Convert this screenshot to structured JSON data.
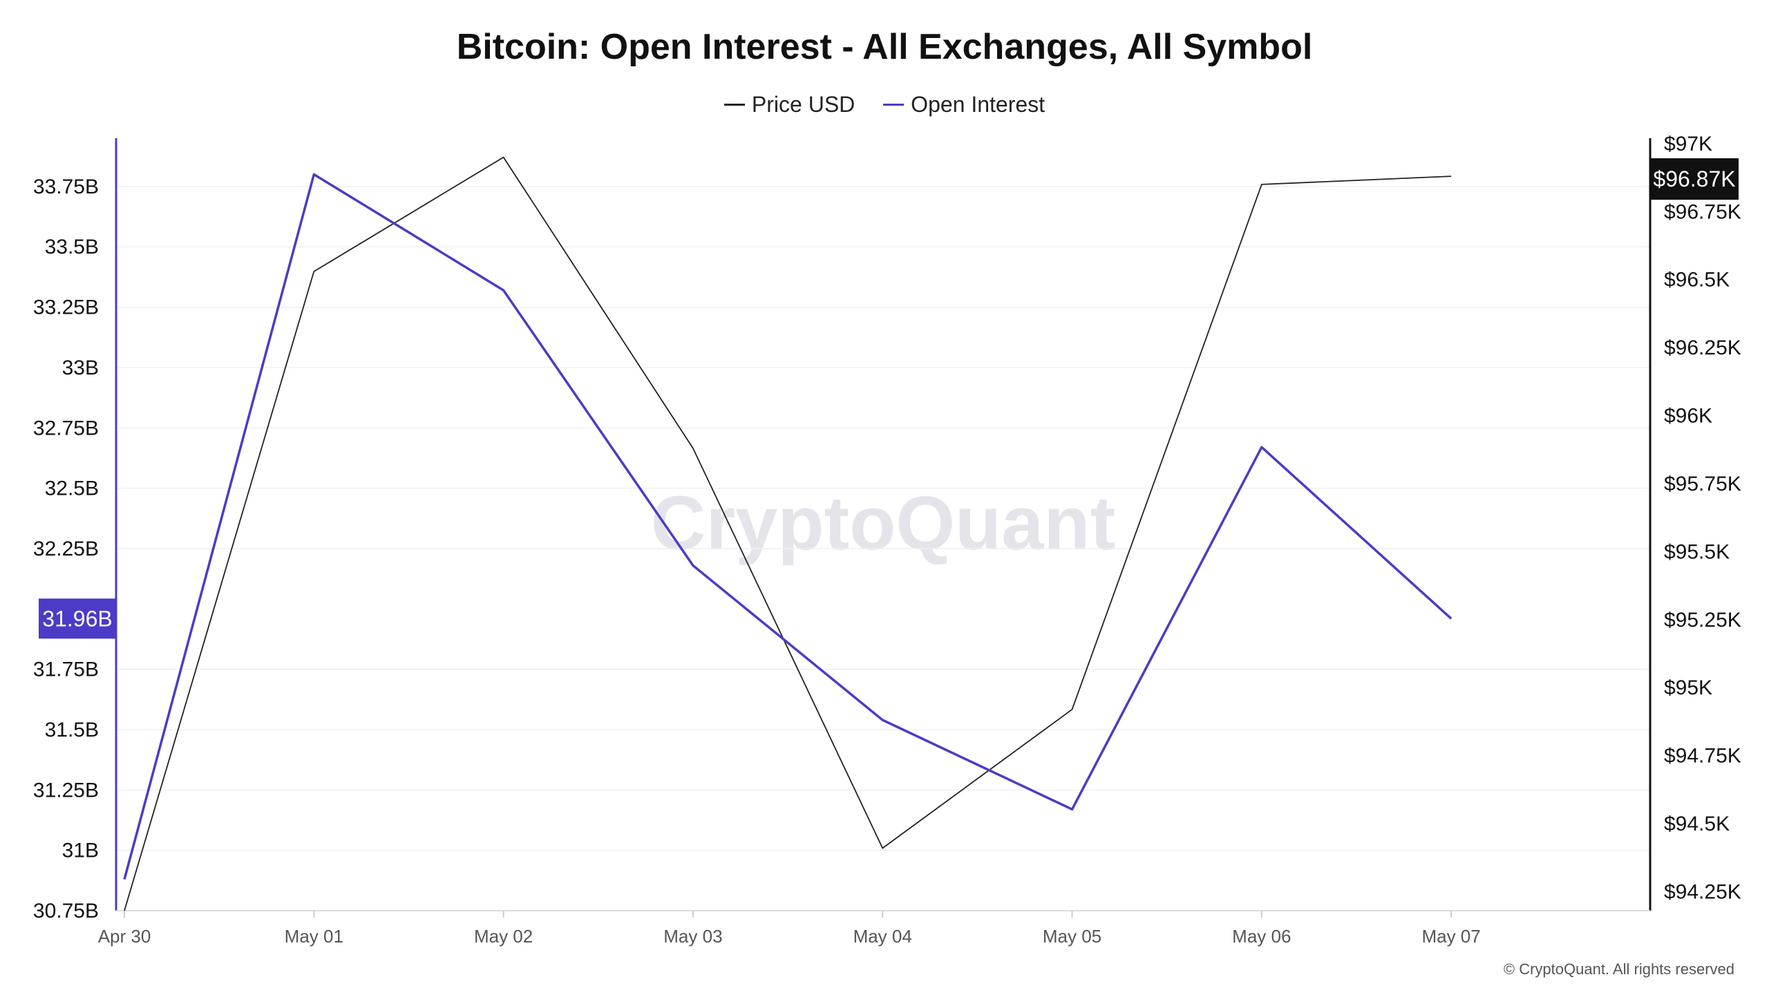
{
  "title": "Bitcoin: Open Interest - All Exchanges, All Symbol",
  "legend": [
    {
      "label": "Price USD",
      "color": "#222222"
    },
    {
      "label": "Open Interest",
      "color": "#4b3bc7"
    }
  ],
  "watermark": "CryptoQuant",
  "copyright": "© CryptoQuant. All rights reserved",
  "chart_data": {
    "type": "line",
    "title": "Bitcoin: Open Interest - All Exchanges, All Symbol",
    "x": [
      "Apr 30",
      "May 01",
      "May 02",
      "May 03",
      "May 04",
      "May 05",
      "May 06",
      "May 07"
    ],
    "series": [
      {
        "name": "Price USD",
        "axis": "right",
        "color": "#222222",
        "values": [
          94.18,
          96.53,
          96.95,
          95.88,
          94.41,
          94.92,
          96.85,
          96.88
        ]
      },
      {
        "name": "Open Interest",
        "axis": "left",
        "color": "#4b3bc7",
        "values": [
          30.88,
          33.8,
          33.32,
          32.18,
          31.54,
          31.17,
          32.67,
          31.96
        ]
      }
    ],
    "left_axis": {
      "ylim": [
        30.75,
        33.95
      ],
      "ticks": [
        "30.75B",
        "31B",
        "31.25B",
        "31.5B",
        "31.75B",
        "32.25B",
        "32.5B",
        "32.75B",
        "33B",
        "33.25B",
        "33.5B",
        "33.75B"
      ],
      "tick_values": [
        30.75,
        31,
        31.25,
        31.5,
        31.75,
        32.25,
        32.5,
        32.75,
        33,
        33.25,
        33.5,
        33.75
      ]
    },
    "right_axis": {
      "ylim": [
        94.18,
        97.02
      ],
      "ticks": [
        "$94.25K",
        "$94.5K",
        "$94.75K",
        "$95K",
        "$95.25K",
        "$95.5K",
        "$95.75K",
        "$96K",
        "$96.25K",
        "$96.5K",
        "$96.75K",
        "$97K"
      ],
      "tick_values": [
        94.25,
        94.5,
        94.75,
        95,
        95.25,
        95.5,
        95.75,
        96,
        96.25,
        96.5,
        96.75,
        97
      ]
    },
    "badges": [
      {
        "label": "31.96B",
        "axis": "left",
        "value": 31.96,
        "color": "#4b3bc7"
      },
      {
        "label": "$96.87K",
        "axis": "right",
        "value": 96.87,
        "color": "#111111"
      }
    ],
    "grid": true,
    "legend_position": "top-center"
  }
}
